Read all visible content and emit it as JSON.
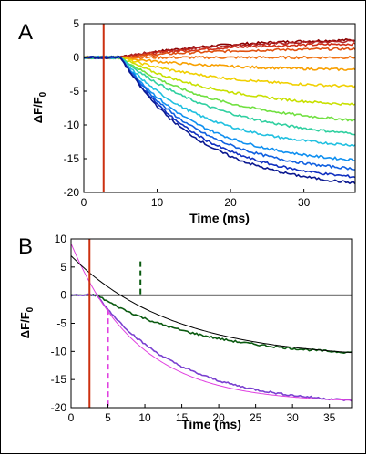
{
  "chart_data": [
    {
      "type": "line",
      "panel_label": "A",
      "xlabel": "Time (ms)",
      "ylabel": "ΔF/F",
      "ylabel_sub": "0",
      "xlim": [
        0,
        37
      ],
      "ylim": [
        -20,
        5
      ],
      "x_ticks": [
        0,
        10,
        20,
        30
      ],
      "y_ticks": [
        5,
        0,
        -5,
        -10,
        -15,
        -20
      ],
      "grid": false,
      "stimulus_marker": {
        "x": 2.7,
        "color": "#cc3010"
      },
      "series": [
        {
          "color": "#8b0000",
          "end_value": 2.6
        },
        {
          "color": "#b22222",
          "end_value": 2.4
        },
        {
          "color": "#d03018",
          "end_value": 2.0
        },
        {
          "color": "#e05010",
          "end_value": 1.3
        },
        {
          "color": "#f07010",
          "end_value": 0.0
        },
        {
          "color": "#f8a000",
          "end_value": -1.8
        },
        {
          "color": "#f0d000",
          "end_value": -4.3
        },
        {
          "color": "#c8e000",
          "end_value": -7.0
        },
        {
          "color": "#70e040",
          "end_value": -9.3
        },
        {
          "color": "#30d0a0",
          "end_value": -11.3
        },
        {
          "color": "#20c0e0",
          "end_value": -13.0
        },
        {
          "color": "#1090f0",
          "end_value": -15.2
        },
        {
          "color": "#1060e0",
          "end_value": -16.5
        },
        {
          "color": "#1030c0",
          "end_value": -17.7
        },
        {
          "color": "#0a1890",
          "end_value": -18.6
        }
      ]
    },
    {
      "type": "line",
      "panel_label": "B",
      "xlabel": "Time (ms)",
      "ylabel": "ΔF/F",
      "ylabel_sub": "0",
      "xlim": [
        0,
        38
      ],
      "ylim": [
        -20,
        10
      ],
      "x_ticks": [
        0,
        5,
        10,
        15,
        20,
        25,
        30,
        35
      ],
      "y_ticks": [
        10,
        5,
        0,
        -5,
        -10,
        -15,
        -20
      ],
      "grid": false,
      "zero_line": true,
      "stimulus_marker": {
        "x": 2.5,
        "color": "#cc3010"
      },
      "dashed_markers": [
        {
          "x": 9.4,
          "y_top": 6,
          "color": "#0a5a10"
        },
        {
          "x": 5.0,
          "y_top": -2.5,
          "color": "#e040e0"
        }
      ],
      "series": [
        {
          "color": "#0a5a10",
          "onset": 3.5,
          "end_value": -10.2
        },
        {
          "color": "#7a40d0",
          "onset": 3.5,
          "end_value": -18.7
        },
        {
          "color": "#e040e0",
          "kind": "fit",
          "start_value": 9.2,
          "end_value": -18.7
        },
        {
          "color": "#000000",
          "kind": "fit",
          "start_value": 7.0,
          "end_value": -10.2
        }
      ]
    }
  ]
}
